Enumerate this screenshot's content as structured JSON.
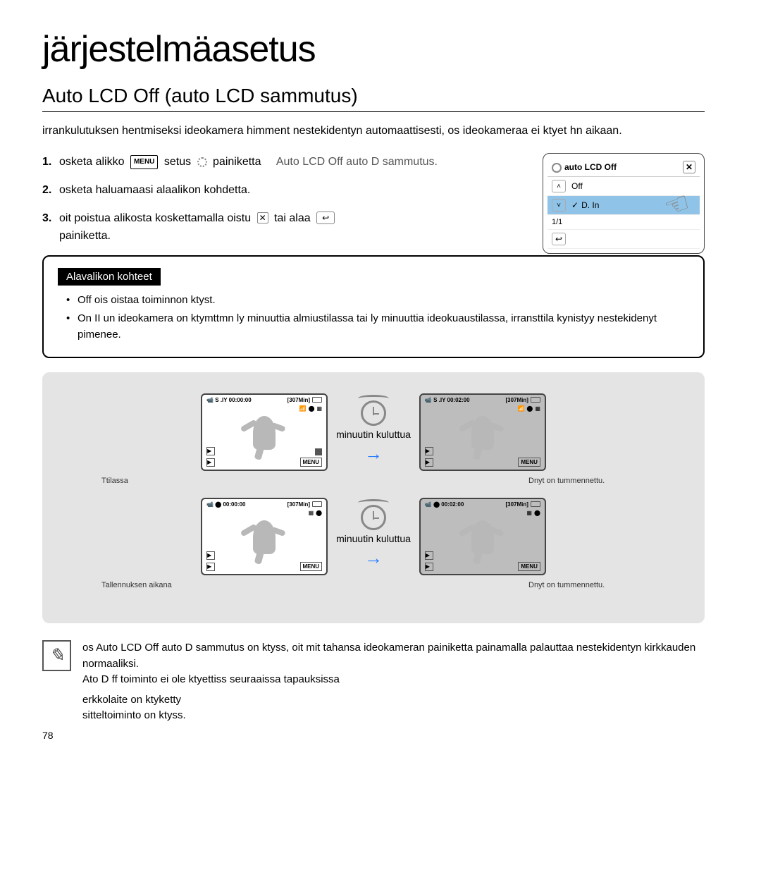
{
  "main_title": "järjestelmäasetus",
  "section_title": "Auto LCD Off (auto LCD sammutus)",
  "intro": "irrankulutuksen hentmiseksi ideokamera himment nestekidentyn automaattisesti, os ideokameraa ei ktyet hn aikaan.",
  "steps": [
    {
      "num": "1.",
      "pre": "osketa alikko",
      "mid1": "setus",
      "mid2": "painiketta",
      "after": "Auto LCD Off auto D sammutus."
    },
    {
      "num": "2.",
      "text": "osketa haluamaasi alaalikon kohdetta."
    },
    {
      "num": "3.",
      "pre": "oit poistua alikosta koskettamalla oistu",
      "mid": "tai alaa",
      "after": "painiketta."
    }
  ],
  "panel": {
    "title": "auto LCD Off",
    "opt_off": "Off",
    "opt_on": "D. In",
    "page": "1/1"
  },
  "sub_tag": "Alavalikon kohteet",
  "sub_items": [
    "Off ois oistaa toiminnon ktyst.",
    "On II un ideokamera on ktymttmn ly minuuttia almiustilassa tai ly minuuttia ideokuaustilassa, irransttila kynistyy nestekidenyt pimenee."
  ],
  "diag": {
    "wait_label": "minuutin kuluttua",
    "lcd_stby": "S .IY  00:00:00",
    "lcd_rec": "00:00:00",
    "lcd_time2": "00:02:00",
    "lcd_307": "[307Min]",
    "menu_btn": "MENU",
    "cap1": "Ttilassa",
    "cap2": "Dnyt on tummennettu.",
    "cap3": "Tallennuksen aikana",
    "cap4": "Dnyt on tummennettu."
  },
  "note": {
    "line1": "os Auto LCD Off auto D sammutus on ktyss, oit mit tahansa ideokameran painiketta painamalla palauttaa nestekidentyn kirkkauden normaaliksi.",
    "line2": "Ato D ff toiminto ei ole ktyettiss seuraaissa tapauksissa",
    "b1": "erkkolaite on ktyketty",
    "b2": "sitteltoiminto on ktyss."
  },
  "page_num": "78"
}
